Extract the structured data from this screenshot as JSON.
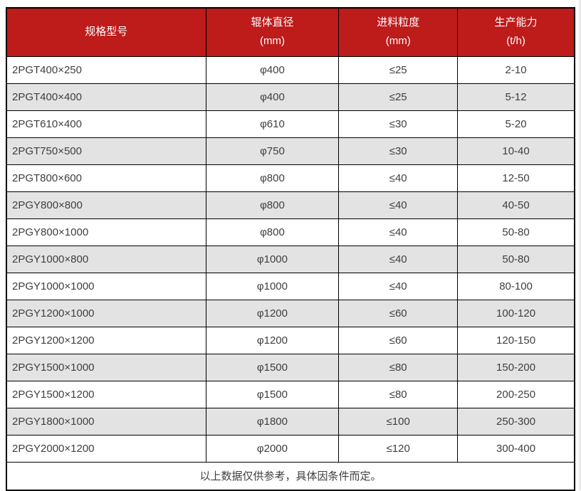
{
  "colors": {
    "header_bg": "#be1b1b",
    "header_text": "#ffffff",
    "stripe_bg": "#e3e3e3",
    "border": "#000000",
    "body_text": "#3f3f3f"
  },
  "chart_data": {
    "type": "table",
    "columns": [
      {
        "label": "规格型号",
        "unit": ""
      },
      {
        "label": "辊体直径",
        "unit": "(mm)"
      },
      {
        "label": "进料粒度",
        "unit": "(mm)"
      },
      {
        "label": "生产能力",
        "unit": "(t/h)"
      }
    ],
    "rows": [
      [
        "2PGT400×250",
        "φ400",
        "≤25",
        "2-10"
      ],
      [
        "2PGT400×400",
        "φ400",
        "≤25",
        "5-12"
      ],
      [
        "2PGT610×400",
        "φ610",
        "≤30",
        "5-20"
      ],
      [
        "2PGT750×500",
        "φ750",
        "≤30",
        "10-40"
      ],
      [
        "2PGT800×600",
        "φ800",
        "≤40",
        "12-50"
      ],
      [
        "2PGY800×800",
        "φ800",
        "≤40",
        "40-50"
      ],
      [
        "2PGY800×1000",
        "φ800",
        "≤40",
        "50-80"
      ],
      [
        "2PGY1000×800",
        "φ1000",
        "≤40",
        "50-80"
      ],
      [
        "2PGY1000×1000",
        "φ1000",
        "≤40",
        "80-100"
      ],
      [
        "2PGY1200×1000",
        "φ1200",
        "≤60",
        "100-120"
      ],
      [
        "2PGY1200×1200",
        "φ1200",
        "≤60",
        "120-150"
      ],
      [
        "2PGY1500×1000",
        "φ1500",
        "≤80",
        "150-200"
      ],
      [
        "2PGY1500×1200",
        "φ1500",
        "≤80",
        "200-250"
      ],
      [
        "2PGY1800×1000",
        "φ1800",
        "≤100",
        "250-300"
      ],
      [
        "2PGY2000×1200",
        "φ2000",
        "≤120",
        "300-400"
      ]
    ],
    "footnote": "以上数据仅供参考，具体因条件而定。"
  }
}
